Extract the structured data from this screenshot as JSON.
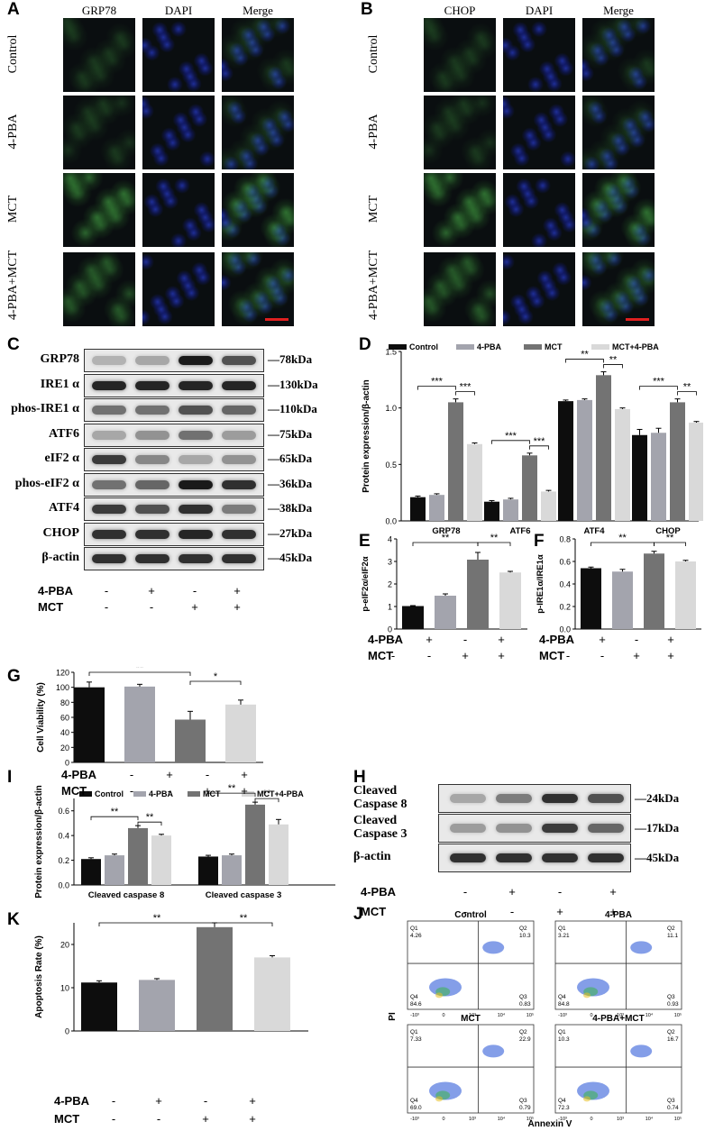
{
  "panel_labels": {
    "A": "A",
    "B": "B",
    "C": "C",
    "D": "D",
    "E": "E",
    "F": "F",
    "G": "G",
    "H": "H",
    "I": "I",
    "J": "J",
    "K": "K"
  },
  "panel_a": {
    "columns": [
      "GRP78",
      "DAPI",
      "Merge"
    ],
    "rows": [
      "Control",
      "4-PBA",
      "MCT",
      "4-PBA+MCT"
    ]
  },
  "panel_b": {
    "columns": [
      "CHOP",
      "DAPI",
      "Merge"
    ],
    "rows": [
      "Control",
      "4-PBA",
      "MCT",
      "4-PBA+MCT"
    ]
  },
  "panel_c": {
    "blots": [
      {
        "name": "GRP78",
        "kda": "78kDa"
      },
      {
        "name": "IRE1 α",
        "kda": "130kDa"
      },
      {
        "name": "phos-IRE1 α",
        "kda": "110kDa"
      },
      {
        "name": "ATF6",
        "kda": "75kDa"
      },
      {
        "name": "eIF2 α",
        "kda": "65kDa"
      },
      {
        "name": "phos-eIF2 α",
        "kda": "36kDa"
      },
      {
        "name": "ATF4",
        "kda": "38kDa"
      },
      {
        "name": "CHOP",
        "kda": "27kDa"
      },
      {
        "name": "β-actin",
        "kda": "45kDa"
      }
    ]
  },
  "panel_h": {
    "blots": [
      {
        "name": "Cleaved Caspase 8",
        "line1": "Cleaved",
        "line2": "Caspase 8",
        "kda": "24kDa"
      },
      {
        "name": "Cleaved Caspase 3",
        "line1": "Cleaved",
        "line2": "Caspase 3",
        "kda": "17kDa"
      },
      {
        "name": "β-actin",
        "line1": "β-actin",
        "line2": "",
        "kda": "45kDa"
      }
    ]
  },
  "treatment": {
    "row1": "4-PBA",
    "row2": "MCT",
    "signs_pba": [
      "-",
      "+",
      "-",
      "+"
    ],
    "signs_mct": [
      "-",
      "-",
      "+",
      "+"
    ]
  },
  "colors": {
    "control": "#0d0d0d",
    "pba": "#a3a4ad",
    "mct": "#737373",
    "mctpba": "#d9d9d9"
  },
  "chart_data": [
    {
      "id": "D",
      "type": "bar",
      "ylabel": "Protein expression/β-actin",
      "ylim": [
        0,
        1.5
      ],
      "yticks": [
        "0.0",
        "0.5",
        "1.0",
        "1.5"
      ],
      "legend": [
        "Control",
        "4-PBA",
        "MCT",
        "MCT+4-PBA"
      ],
      "categories": [
        "GRP78",
        "ATF6",
        "ATF4",
        "CHOP"
      ],
      "series": [
        {
          "name": "Control",
          "values": [
            0.21,
            0.17,
            1.06,
            0.76
          ],
          "err": [
            0.01,
            0.01,
            0.01,
            0.05
          ]
        },
        {
          "name": "4-PBA",
          "values": [
            0.23,
            0.19,
            1.07,
            0.78
          ],
          "err": [
            0.01,
            0.01,
            0.01,
            0.04
          ]
        },
        {
          "name": "MCT",
          "values": [
            1.05,
            0.58,
            1.29,
            1.05
          ],
          "err": [
            0.03,
            0.02,
            0.03,
            0.03
          ]
        },
        {
          "name": "MCT+4-PBA",
          "values": [
            0.68,
            0.26,
            0.99,
            0.87
          ],
          "err": [
            0.01,
            0.01,
            0.01,
            0.01
          ]
        }
      ],
      "sig": [
        [
          "***",
          "***"
        ],
        [
          "***",
          "***"
        ],
        [
          "**",
          "**"
        ],
        [
          "***",
          "**"
        ]
      ]
    },
    {
      "id": "E",
      "type": "bar",
      "ylabel": "p-eIF2α/eIF2α",
      "ylim": [
        0,
        4
      ],
      "yticks": [
        "0",
        "1",
        "2",
        "3",
        "4"
      ],
      "values": [
        1.02,
        1.48,
        3.08,
        2.51
      ],
      "err": [
        0.02,
        0.08,
        0.32,
        0.05
      ],
      "sig": [
        "**",
        "**"
      ]
    },
    {
      "id": "F",
      "type": "bar",
      "ylabel": "p-IRE1α/IRE1α",
      "ylim": [
        0,
        0.8
      ],
      "yticks": [
        "0.0",
        "0.2",
        "0.4",
        "0.6",
        "0.8"
      ],
      "values": [
        0.54,
        0.51,
        0.67,
        0.6
      ],
      "err": [
        0.01,
        0.02,
        0.02,
        0.01
      ],
      "sig": [
        "**",
        "**"
      ]
    },
    {
      "id": "G",
      "type": "bar",
      "ylabel": "Cell Viability (%)",
      "ylim": [
        0,
        120
      ],
      "yticks": [
        "0",
        "20",
        "40",
        "60",
        "80",
        "100",
        "120"
      ],
      "values": [
        100,
        101,
        57,
        77
      ],
      "err": [
        7,
        3,
        11,
        6
      ],
      "sig": [
        "**",
        "*"
      ]
    },
    {
      "id": "I",
      "type": "bar",
      "ylabel": "Protein expression/β-actin",
      "ylim": [
        0,
        0.7
      ],
      "yticks": [
        "0.0",
        "0.2",
        "0.4",
        "0.6"
      ],
      "legend": [
        "Control",
        "4-PBA",
        "MCT",
        "MCT+4-PBA"
      ],
      "categories": [
        "Cleaved caspase 8",
        "Cleaved caspase 3"
      ],
      "series": [
        {
          "name": "Control",
          "values": [
            0.21,
            0.23
          ],
          "err": [
            0.01,
            0.01
          ]
        },
        {
          "name": "4-PBA",
          "values": [
            0.24,
            0.24
          ],
          "err": [
            0.01,
            0.01
          ]
        },
        {
          "name": "MCT",
          "values": [
            0.46,
            0.65
          ],
          "err": [
            0.02,
            0.02
          ]
        },
        {
          "name": "MCT+4-PBA",
          "values": [
            0.4,
            0.49
          ],
          "err": [
            0.01,
            0.04
          ]
        }
      ],
      "sig": [
        [
          "**",
          "**"
        ],
        [
          "**",
          "**"
        ]
      ]
    },
    {
      "id": "K",
      "type": "bar",
      "ylabel": "Apoptosis Rate (%)",
      "ylim": [
        0,
        25
      ],
      "yticks": [
        "0",
        "10",
        "20"
      ],
      "values": [
        11.2,
        11.8,
        24,
        17
      ],
      "err": [
        0.4,
        0.3,
        1.0,
        0.4
      ],
      "sig": [
        "**",
        "**"
      ]
    },
    {
      "id": "J",
      "type": "scatter",
      "ylabel": "PI",
      "xlabel": "Annexin V",
      "plots": [
        {
          "title": "Control",
          "q1": "4.26",
          "q2": "10.3",
          "q3": "0.83",
          "q4": "84.6"
        },
        {
          "title": "4-PBA",
          "q1": "3.21",
          "q2": "11.1",
          "q3": "0.93",
          "q4": "84.8"
        },
        {
          "title": "MCT",
          "q1": "7.33",
          "q2": "22.9",
          "q3": "0.79",
          "q4": "69.0"
        },
        {
          "title": "4-PBA+MCT",
          "q1": "10.3",
          "q2": "16.7",
          "q3": "0.74",
          "q4": "72.3"
        }
      ],
      "quad_labels": [
        "Q1",
        "Q2",
        "Q3",
        "Q4"
      ],
      "axis_ticks": [
        "-10³",
        "0",
        "10³",
        "10⁴",
        "10⁵"
      ]
    }
  ]
}
